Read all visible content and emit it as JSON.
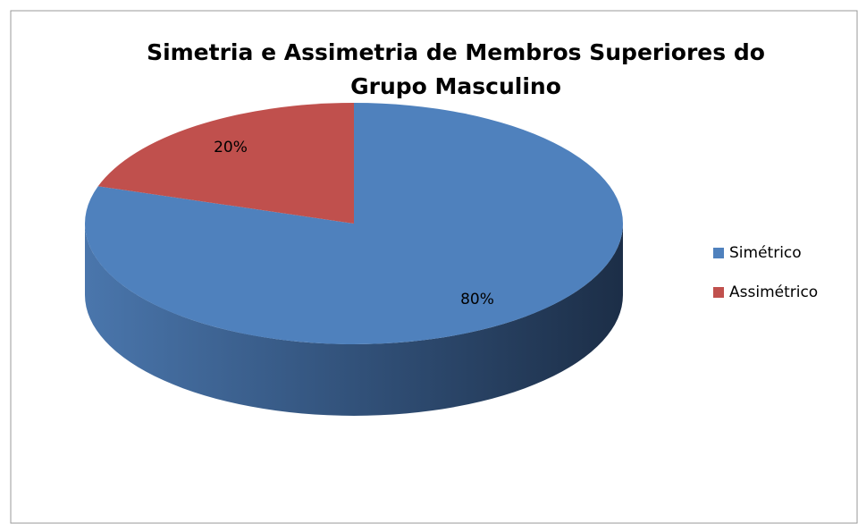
{
  "chart_data": {
    "type": "pie",
    "title": "Simetria e Assimetria de Membros Superiores do Grupo Masculino",
    "categories": [
      "Simétrico",
      "Assimétrico"
    ],
    "values": [
      80,
      20
    ],
    "value_labels": [
      "80%",
      "20%"
    ],
    "colors": [
      "#4f81bd",
      "#c0504d"
    ],
    "legend": "right"
  }
}
